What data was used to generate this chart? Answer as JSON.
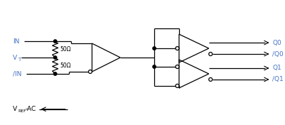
{
  "fig_width": 4.02,
  "fig_height": 1.76,
  "dpi": 100,
  "bg_color": "#ffffff",
  "line_color": "#000000",
  "label_color": "#4472c4",
  "label_fontsize": 6.5,
  "sub_fontsize": 5.0,
  "output_label_color": "#4472c4",
  "IN_label": "IN",
  "VT_label": "V",
  "VT_sub": "T",
  "IN_inv_label": "/IN",
  "VREF_label": "V",
  "VREF_sub": "REF",
  "VREF_suffix": "-AC",
  "R_label": "50Ω",
  "outputs": [
    "Q0",
    "/Q0",
    "Q1",
    "/Q1"
  ]
}
